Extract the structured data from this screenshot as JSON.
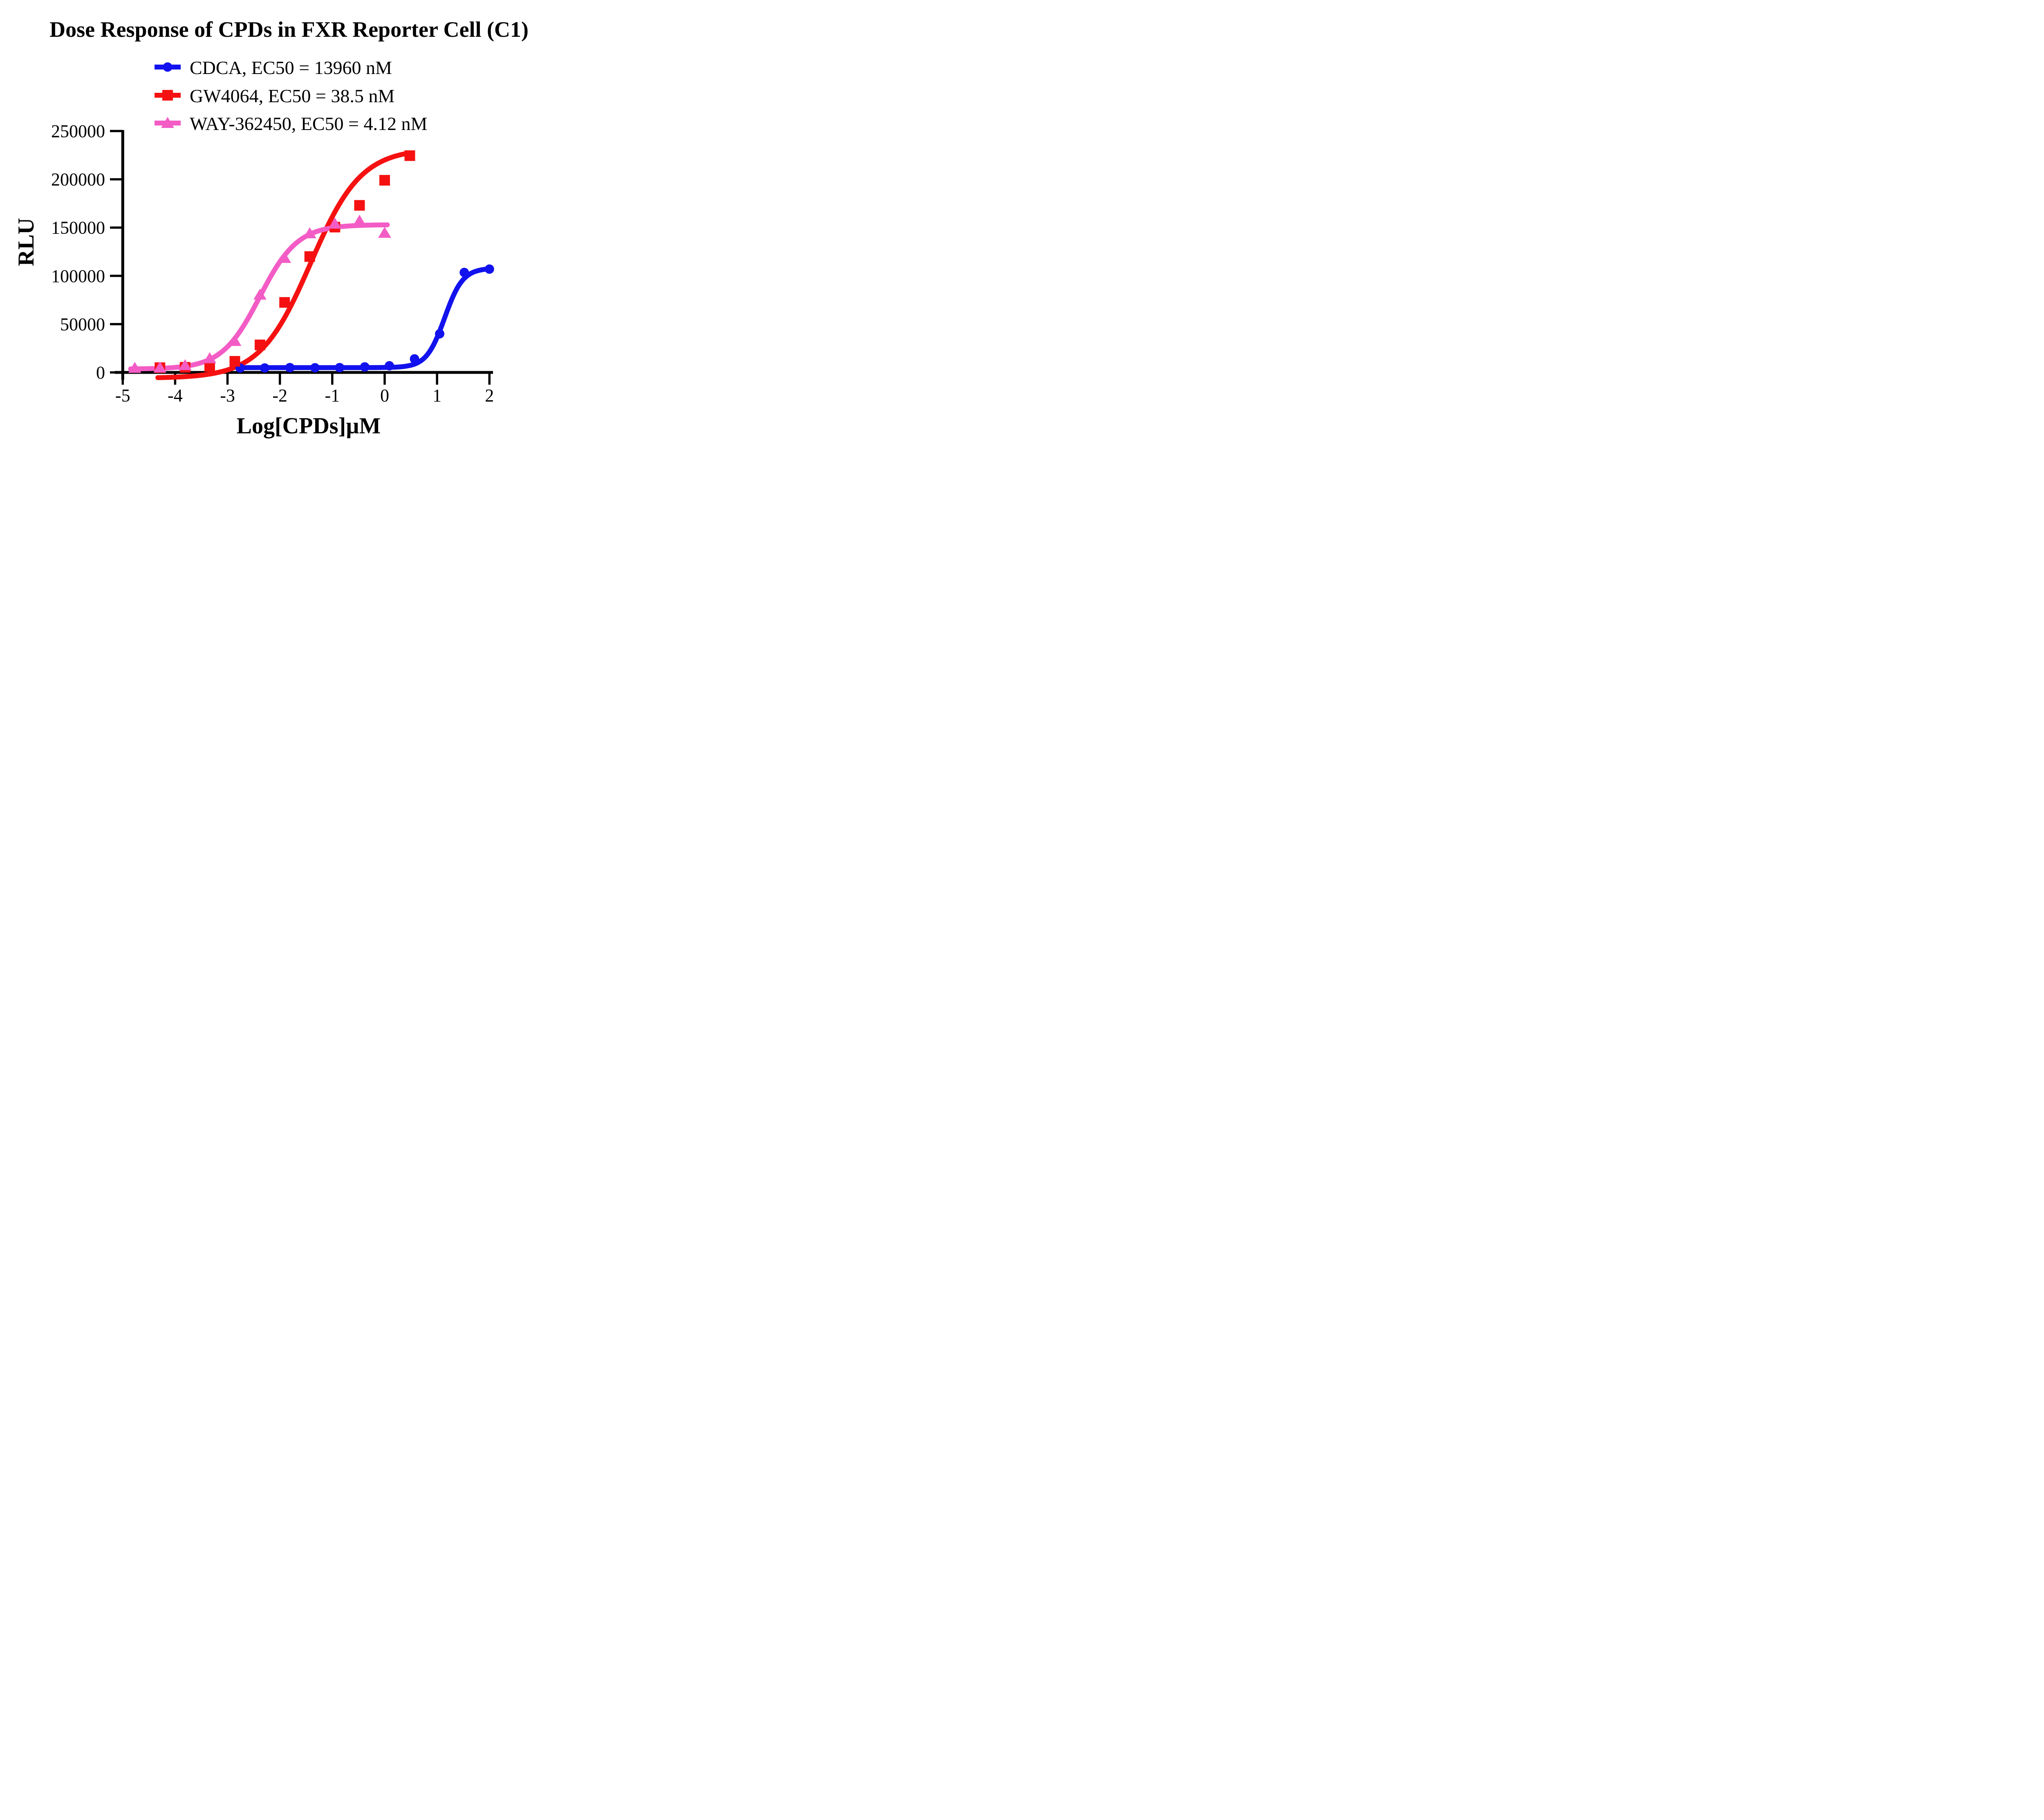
{
  "chart_data": {
    "type": "scatter",
    "title": "Dose Response of CPDs in FXR Reporter Cell (C1)",
    "xlabel": "Log[CPDs]µM",
    "ylabel": "RLU",
    "x_ticks": [
      -5,
      -4,
      -3,
      -2,
      -1,
      0,
      1,
      2
    ],
    "y_ticks": [
      0,
      50000,
      100000,
      150000,
      200000,
      250000
    ],
    "xlim": [
      -5,
      2
    ],
    "ylim": [
      0,
      250000
    ],
    "grid": false,
    "legend_position": "top-center",
    "axis_color": "#000000",
    "background": "#ffffff",
    "series": [
      {
        "name": "CDCA, EC50 = 13960 nM",
        "ec50_label": "13960 nM",
        "color": "#1212ee",
        "marker": "circle",
        "x": [
          -2.76,
          -2.29,
          -1.81,
          -1.33,
          -0.86,
          -0.38,
          0.09,
          0.57,
          1.05,
          1.52,
          2.0
        ],
        "y": [
          4600,
          4600,
          5000,
          4800,
          5000,
          5700,
          6900,
          14000,
          40000,
          103500,
          107000
        ],
        "fit_4pl": {
          "bottom": 5000,
          "top": 108000,
          "logec50": 1.145,
          "hill": 2.5,
          "xmin": -2.8,
          "xmax": 2.0
        }
      },
      {
        "name": "GW4064, EC50 = 38.5 nM",
        "ec50_label": "38.5 nM",
        "color": "#f51111",
        "marker": "square",
        "x": [
          -4.29,
          -3.81,
          -3.34,
          -2.86,
          -2.38,
          -1.91,
          -1.43,
          -0.95,
          -0.48,
          0.0,
          0.48
        ],
        "y": [
          4900,
          5300,
          6200,
          11500,
          28500,
          72500,
          120000,
          150500,
          173000,
          199000,
          224500
        ],
        "fit_4pl": {
          "bottom": -6000,
          "top": 232000,
          "logec50": -1.4145,
          "hill": 0.9,
          "xmin": -4.33,
          "xmax": 0.42
        }
      },
      {
        "name": "WAY-362450, EC50 = 4.12 nM",
        "ec50_label": "4.12 nM",
        "color": "#f35cc5",
        "marker": "triangle",
        "x": [
          -4.77,
          -4.29,
          -3.81,
          -3.34,
          -2.86,
          -2.38,
          -1.91,
          -1.43,
          -0.95,
          -0.48,
          0.0
        ],
        "y": [
          4600,
          5000,
          7400,
          14600,
          32500,
          80500,
          118500,
          144000,
          154000,
          157000,
          144500
        ],
        "fit_4pl": {
          "bottom": 3500,
          "top": 153000,
          "logec50": -2.385,
          "hill": 1.2,
          "xmin": -4.85,
          "xmax": 0.05
        }
      }
    ]
  }
}
